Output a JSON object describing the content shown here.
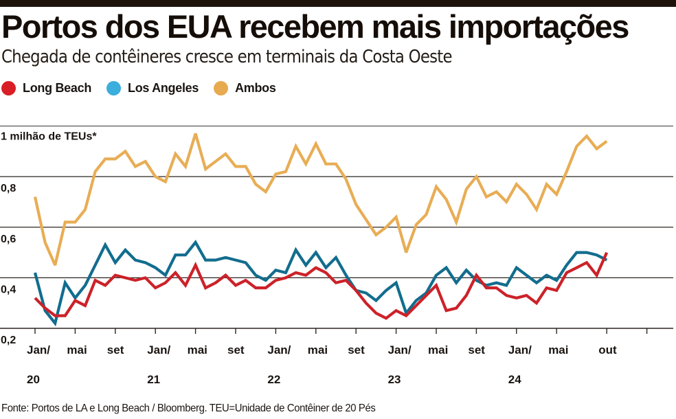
{
  "header": {
    "title": "Portos dos EUA recebem mais importações",
    "subtitle": "Chegada de contêineres cresce  em terminais da Costa Oeste"
  },
  "legend": [
    {
      "label": "Long Beach",
      "color": "#d81f26"
    },
    {
      "label": "Los Angeles",
      "color": "#3aaedc"
    },
    {
      "label": "Ambos",
      "color": "#e8aa4f"
    }
  ],
  "footer": {
    "source": "Fonte: Portos de LA e Long Beach / Bloomberg. TEU=Unidade de Contêiner de 20 Pés"
  },
  "chart_data": {
    "type": "line",
    "title": "Portos dos EUA recebem mais importações",
    "subtitle": "Chegada de contêineres cresce  em terminais da Costa Oeste",
    "xlabel": "",
    "ylabel": "1 milhão de TEUs*",
    "ylim": [
      0.2,
      1.0
    ],
    "yticks": [
      {
        "value": 1.0,
        "label": "1 milhão de TEUs*"
      },
      {
        "value": 0.8,
        "label": "0,8"
      },
      {
        "value": 0.6,
        "label": "0,6"
      },
      {
        "value": 0.4,
        "label": "0,4"
      },
      {
        "value": 0.2,
        "label": "0,2"
      }
    ],
    "grid": true,
    "legend_position": "top-left",
    "x_start": "2020-01",
    "x_unit": "month",
    "xticks": [
      {
        "month_index": 0,
        "label": "Jan/",
        "year": "20"
      },
      {
        "month_index": 4,
        "label": "mai",
        "year": ""
      },
      {
        "month_index": 8,
        "label": "set",
        "year": ""
      },
      {
        "month_index": 12,
        "label": "Jan/",
        "year": "21"
      },
      {
        "month_index": 16,
        "label": "mai",
        "year": ""
      },
      {
        "month_index": 20,
        "label": "set",
        "year": ""
      },
      {
        "month_index": 24,
        "label": "Jan/",
        "year": "22"
      },
      {
        "month_index": 28,
        "label": "mai",
        "year": ""
      },
      {
        "month_index": 32,
        "label": "set",
        "year": ""
      },
      {
        "month_index": 36,
        "label": "Jan/",
        "year": "23"
      },
      {
        "month_index": 40,
        "label": "mai",
        "year": ""
      },
      {
        "month_index": 44,
        "label": "set",
        "year": ""
      },
      {
        "month_index": 48,
        "label": "Jan/",
        "year": "24"
      },
      {
        "month_index": 52,
        "label": "mai",
        "year": ""
      },
      {
        "month_index": 57,
        "label": "out",
        "year": ""
      },
      {
        "month_index": 61,
        "label": "",
        "year": ""
      }
    ],
    "x_max_month_index": 64,
    "series": [
      {
        "name": "Long Beach",
        "color": "#cc2229",
        "values": [
          0.32,
          0.28,
          0.25,
          0.25,
          0.31,
          0.29,
          0.39,
          0.37,
          0.41,
          0.4,
          0.39,
          0.4,
          0.36,
          0.38,
          0.42,
          0.37,
          0.45,
          0.36,
          0.38,
          0.41,
          0.37,
          0.39,
          0.36,
          0.36,
          0.39,
          0.4,
          0.42,
          0.41,
          0.44,
          0.42,
          0.38,
          0.39,
          0.35,
          0.3,
          0.26,
          0.24,
          0.27,
          0.25,
          0.29,
          0.33,
          0.37,
          0.27,
          0.28,
          0.33,
          0.41,
          0.36,
          0.36,
          0.33,
          0.32,
          0.33,
          0.3,
          0.36,
          0.35,
          0.42,
          0.44,
          0.46,
          0.41,
          0.5
        ]
      },
      {
        "name": "Los Angeles",
        "color": "#126d8e",
        "values": [
          0.42,
          0.27,
          0.22,
          0.38,
          0.32,
          0.37,
          0.45,
          0.53,
          0.46,
          0.51,
          0.47,
          0.46,
          0.44,
          0.41,
          0.49,
          0.49,
          0.54,
          0.47,
          0.47,
          0.48,
          0.47,
          0.46,
          0.41,
          0.39,
          0.43,
          0.42,
          0.51,
          0.45,
          0.5,
          0.44,
          0.48,
          0.41,
          0.35,
          0.34,
          0.31,
          0.35,
          0.38,
          0.26,
          0.31,
          0.34,
          0.41,
          0.44,
          0.38,
          0.43,
          0.39,
          0.37,
          0.38,
          0.37,
          0.44,
          0.41,
          0.38,
          0.41,
          0.39,
          0.45,
          0.5,
          0.5,
          0.49,
          0.47
        ]
      },
      {
        "name": "Ambos",
        "color": "#e8ad55",
        "values": [
          0.72,
          0.54,
          0.45,
          0.62,
          0.62,
          0.67,
          0.82,
          0.87,
          0.87,
          0.9,
          0.84,
          0.86,
          0.8,
          0.78,
          0.89,
          0.84,
          0.97,
          0.83,
          0.86,
          0.89,
          0.84,
          0.84,
          0.77,
          0.74,
          0.81,
          0.82,
          0.92,
          0.85,
          0.93,
          0.85,
          0.85,
          0.79,
          0.69,
          0.63,
          0.57,
          0.6,
          0.64,
          0.5,
          0.61,
          0.65,
          0.76,
          0.71,
          0.62,
          0.75,
          0.8,
          0.72,
          0.74,
          0.7,
          0.77,
          0.73,
          0.67,
          0.77,
          0.73,
          0.82,
          0.92,
          0.96,
          0.91,
          0.94
        ]
      }
    ]
  }
}
